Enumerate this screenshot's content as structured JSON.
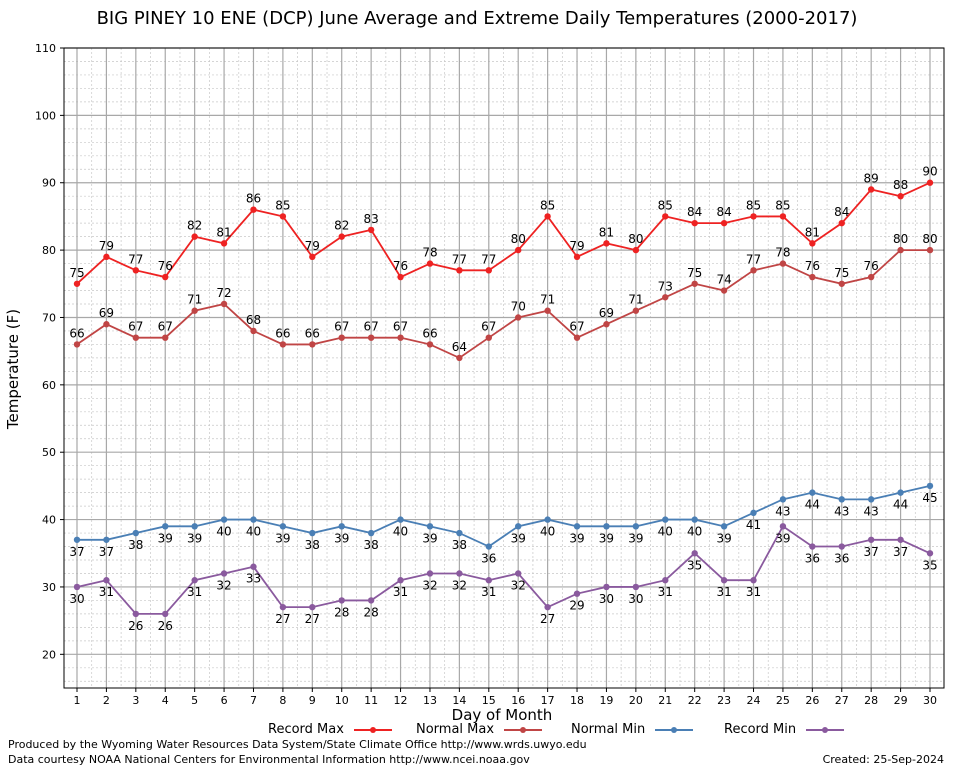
{
  "title": "BIG PINEY 10 ENE (DCP) June Average and Extreme Daily Temperatures (2000-2017)",
  "footer": {
    "produced_by": "Produced by the Wyoming Water Resources Data System/State Climate Office http://www.wrds.uwyo.edu",
    "courtesy": "Data courtesy NOAA National Centers for Environmental Information http://www.ncei.noaa.gov",
    "created": "Created:  25-Sep-2024"
  },
  "chart_data": {
    "type": "line",
    "title": "BIG PINEY 10 ENE (DCP) June Average and Extreme Daily Temperatures (2000-2017)",
    "xlabel": "Day of Month",
    "ylabel": "Temperature (F)",
    "x": [
      1,
      2,
      3,
      4,
      5,
      6,
      7,
      8,
      9,
      10,
      11,
      12,
      13,
      14,
      15,
      16,
      17,
      18,
      19,
      20,
      21,
      22,
      23,
      24,
      25,
      26,
      27,
      28,
      29,
      30
    ],
    "xlim": [
      1,
      30
    ],
    "ylim": [
      15,
      110
    ],
    "yticks": [
      20,
      30,
      40,
      50,
      60,
      70,
      80,
      90,
      100,
      110
    ],
    "grid": true,
    "legend_position": "bottom",
    "series": [
      {
        "name": "Record Max",
        "color": "#ee2222",
        "label_pos": "above",
        "values": [
          75,
          79,
          77,
          76,
          82,
          81,
          86,
          85,
          79,
          82,
          83,
          76,
          78,
          77,
          77,
          80,
          85,
          79,
          81,
          80,
          85,
          84,
          84,
          85,
          85,
          81,
          84,
          89,
          88,
          90
        ]
      },
      {
        "name": "Normal Max",
        "color": "#c04545",
        "label_pos": "above",
        "values": [
          66,
          69,
          67,
          67,
          71,
          72,
          68,
          66,
          66,
          67,
          67,
          67,
          66,
          64,
          67,
          70,
          71,
          67,
          69,
          71,
          73,
          75,
          74,
          77,
          78,
          76,
          75,
          76,
          80,
          80
        ]
      },
      {
        "name": "Normal Min",
        "color": "#4a7fb5",
        "label_pos": "below",
        "values": [
          37,
          37,
          38,
          39,
          39,
          40,
          40,
          39,
          38,
          39,
          38,
          40,
          39,
          38,
          36,
          39,
          40,
          39,
          39,
          39,
          40,
          40,
          39,
          41,
          43,
          44,
          43,
          43,
          44,
          45
        ]
      },
      {
        "name": "Record Min",
        "color": "#8a5a9e",
        "label_pos": "below",
        "values": [
          30,
          31,
          26,
          26,
          31,
          32,
          33,
          27,
          27,
          28,
          28,
          31,
          32,
          32,
          31,
          32,
          27,
          29,
          30,
          30,
          31,
          35,
          31,
          31,
          39,
          36,
          36,
          37,
          37,
          35
        ]
      }
    ]
  }
}
